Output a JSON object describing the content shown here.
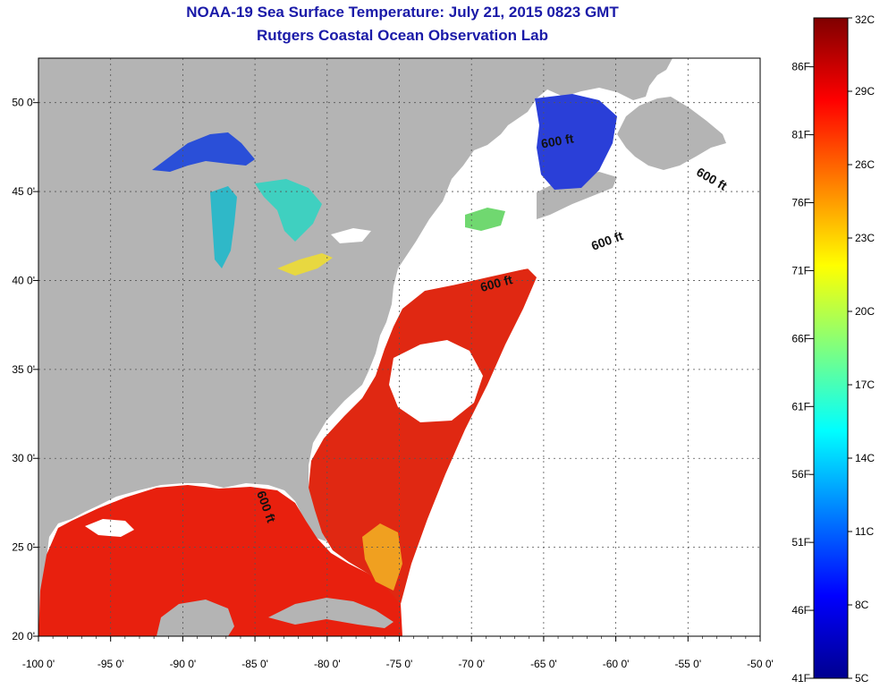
{
  "title": "NOAA-19 Sea Surface Temperature:  July 21, 2015 0823 GMT",
  "subtitle": "Rutgers Coastal Ocean Observation Lab",
  "map": {
    "lon_range": [
      -100,
      -50
    ],
    "lat_range": [
      20,
      52.5
    ],
    "lon_ticks": [
      {
        "value": -100,
        "label": "-100 0'"
      },
      {
        "value": -95,
        "label": "-95 0'"
      },
      {
        "value": -90,
        "label": "-90 0'"
      },
      {
        "value": -85,
        "label": "-85 0'"
      },
      {
        "value": -80,
        "label": "-80 0'"
      },
      {
        "value": -75,
        "label": "-75 0'"
      },
      {
        "value": -70,
        "label": "-70 0'"
      },
      {
        "value": -65,
        "label": "-65 0'"
      },
      {
        "value": -60,
        "label": "-60 0'"
      },
      {
        "value": -55,
        "label": "-55 0'"
      },
      {
        "value": -50,
        "label": "-50 0'"
      }
    ],
    "lat_ticks": [
      {
        "value": 20,
        "label": "20 0'"
      },
      {
        "value": 25,
        "label": "25 0'"
      },
      {
        "value": 30,
        "label": "30 0'"
      },
      {
        "value": 35,
        "label": "35 0'"
      },
      {
        "value": 40,
        "label": "40 0'"
      },
      {
        "value": 45,
        "label": "45 0'"
      },
      {
        "value": 50,
        "label": "50 0'"
      }
    ],
    "grid": true,
    "land_color": "#b4b4b4",
    "contour_labels": [
      {
        "text": "600 ft",
        "lon": -84.5,
        "lat": 27.2,
        "rotate": 70
      },
      {
        "text": "600 ft",
        "lon": -68.2,
        "lat": 39.6,
        "rotate": -15
      },
      {
        "text": "600 ft",
        "lon": -60.5,
        "lat": 42.0,
        "rotate": -20
      },
      {
        "text": "600 ft",
        "lon": -53.5,
        "lat": 45.5,
        "rotate": 30
      },
      {
        "text": "600 ft",
        "lon": -64.0,
        "lat": 47.6,
        "rotate": -10
      }
    ]
  },
  "colorbar": {
    "celsius": [
      {
        "value": 32,
        "label": "32C"
      },
      {
        "value": 29,
        "label": "29C"
      },
      {
        "value": 26,
        "label": "26C"
      },
      {
        "value": 23,
        "label": "23C"
      },
      {
        "value": 20,
        "label": "20C"
      },
      {
        "value": 17,
        "label": "17C"
      },
      {
        "value": 14,
        "label": "14C"
      },
      {
        "value": 11,
        "label": "11C"
      },
      {
        "value": 8,
        "label": "8C"
      },
      {
        "value": 5,
        "label": "5C"
      }
    ],
    "fahrenheit": [
      {
        "value": 86,
        "label": "86F"
      },
      {
        "value": 81,
        "label": "81F"
      },
      {
        "value": 76,
        "label": "76F"
      },
      {
        "value": 71,
        "label": "71F"
      },
      {
        "value": 66,
        "label": "66F"
      },
      {
        "value": 61,
        "label": "61F"
      },
      {
        "value": 56,
        "label": "56F"
      },
      {
        "value": 51,
        "label": "51F"
      },
      {
        "value": 46,
        "label": "46F"
      },
      {
        "value": 41,
        "label": "41F"
      }
    ],
    "range_c": [
      5,
      32
    ],
    "colors": [
      "#00008f",
      "#0000ff",
      "#007fff",
      "#00ffff",
      "#7fff7f",
      "#ffff00",
      "#ff7f00",
      "#ff0000",
      "#7f0000"
    ]
  }
}
